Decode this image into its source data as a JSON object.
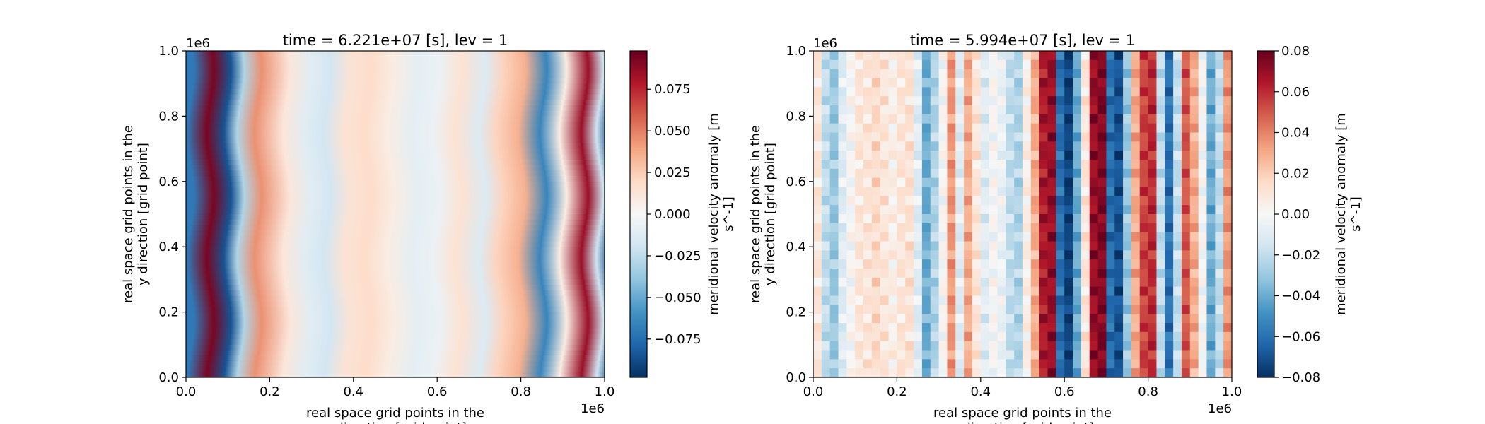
{
  "figure": {
    "background": "#ffffff"
  },
  "colormap": {
    "name": "RdBu_r",
    "stops": [
      "#053061",
      "#2166ac",
      "#4393c3",
      "#92c5de",
      "#d1e5f0",
      "#f7f7f7",
      "#fddbc7",
      "#f4a582",
      "#d6604d",
      "#b2182b",
      "#67001f"
    ]
  },
  "chart_data": [
    {
      "type": "heatmap",
      "title": "time = 6.221e+07 [s], lev = 1",
      "xlabel": "real space grid points in the\nx direction [grid point]",
      "ylabel": "real space grid points in the\ny direction [grid point]",
      "x_offset_text": "1e6",
      "y_offset_text": "1e6",
      "xlim": [
        0,
        1.0
      ],
      "ylim": [
        0,
        1.0
      ],
      "xticks": [
        "0.0",
        "0.2",
        "0.4",
        "0.6",
        "0.8",
        "1.0"
      ],
      "yticks": [
        "0.0",
        "0.2",
        "0.4",
        "0.6",
        "0.8",
        "1.0"
      ],
      "smooth": true,
      "wavy": true,
      "x_centers": [
        0.0,
        0.03,
        0.075,
        0.115,
        0.145,
        0.185,
        0.25,
        0.3,
        0.345,
        0.39,
        0.44,
        0.49,
        0.545,
        0.595,
        0.645,
        0.7,
        0.74,
        0.79,
        0.84,
        0.885,
        0.935,
        0.97,
        1.0
      ],
      "x_values": [
        -0.07,
        -0.07,
        0.093,
        -0.085,
        -0.03,
        0.045,
        0.012,
        -0.012,
        -0.018,
        0.014,
        0.018,
        0.008,
        -0.01,
        -0.006,
        0.015,
        -0.014,
        0.022,
        0.035,
        -0.065,
        0.008,
        0.085,
        -0.02,
        -0.085
      ],
      "colorbar": {
        "label": "meridional velocity anomaly [m\ns^-1]",
        "vmin": -0.098,
        "vmax": 0.098,
        "ticks": [
          -0.075,
          -0.05,
          -0.025,
          0.0,
          0.025,
          0.05,
          0.075
        ],
        "tick_labels": [
          "−0.075",
          "−0.050",
          "−0.025",
          "0.000",
          "0.025",
          "0.050",
          "0.075"
        ]
      }
    },
    {
      "type": "heatmap",
      "title": "time = 5.994e+07 [s], lev = 1",
      "xlabel": "real space grid points in the\nx direction [grid point]",
      "ylabel": "real space grid points in the\ny direction [grid point]",
      "x_offset_text": "1e6",
      "y_offset_text": "1e6",
      "xlim": [
        0,
        1.0
      ],
      "ylim": [
        0,
        1.0
      ],
      "xticks": [
        "0.0",
        "0.2",
        "0.4",
        "0.6",
        "0.8",
        "1.0"
      ],
      "yticks": [
        "0.0",
        "0.2",
        "0.4",
        "0.6",
        "0.8",
        "1.0"
      ],
      "smooth": false,
      "wavy": false,
      "x_values": [
        0.01,
        -0.02,
        -0.03,
        -0.01,
        0.0,
        0.01,
        0.01,
        0.015,
        0.01,
        0.005,
        0.01,
        0.012,
        -0.01,
        -0.04,
        -0.025,
        0.0,
        0.035,
        -0.01,
        0.03,
        0.01,
        -0.01,
        0.0,
        -0.005,
        -0.02,
        -0.025,
        0.005,
        0.03,
        0.065,
        0.07,
        -0.06,
        -0.075,
        -0.04,
        0.01,
        0.07,
        0.075,
        -0.06,
        -0.07,
        -0.03,
        0.03,
        0.055,
        0.06,
        -0.02,
        -0.06,
        -0.02,
        0.05,
        0.03,
        0.0,
        -0.04,
        -0.02,
        0.035
      ],
      "colorbar": {
        "label": "meridional velocity anomaly [m\ns^-1]",
        "vmin": -0.08,
        "vmax": 0.08,
        "ticks": [
          -0.08,
          -0.06,
          -0.04,
          -0.02,
          0.0,
          0.02,
          0.04,
          0.06,
          0.08
        ],
        "tick_labels": [
          "−0.08",
          "−0.06",
          "−0.04",
          "−0.02",
          "0.00",
          "0.02",
          "0.04",
          "0.06",
          "0.08"
        ]
      }
    }
  ]
}
